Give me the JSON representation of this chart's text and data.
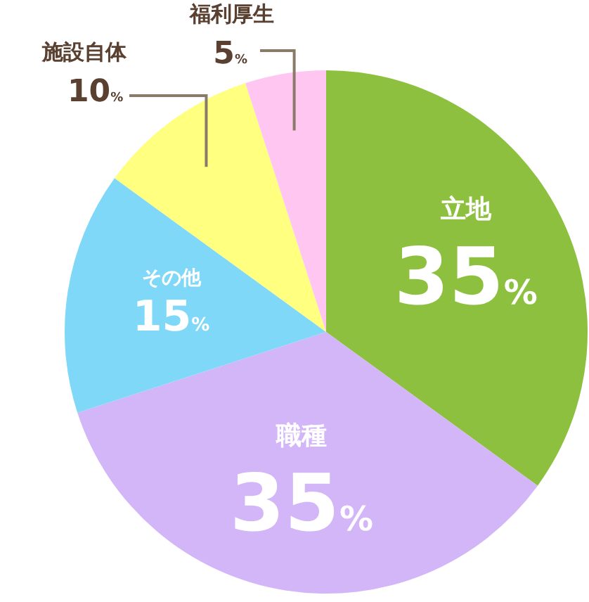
{
  "chart_data": {
    "type": "pie",
    "categories": [
      "立地",
      "職種",
      "その他",
      "施設自体",
      "福利厚生"
    ],
    "values": [
      35,
      35,
      15,
      10,
      5
    ],
    "value_labels": [
      "35%",
      "35%",
      "15%",
      "10%",
      "5%"
    ],
    "colors": [
      "#8dc03f",
      "#d2b6f8",
      "#7fd8f7",
      "#ffff80",
      "#ffc6f2"
    ]
  }
}
